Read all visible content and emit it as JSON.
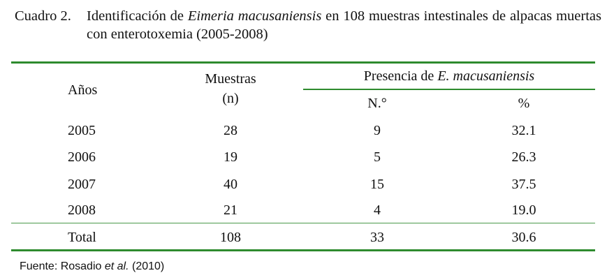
{
  "caption": {
    "label": "Cuadro 2.",
    "text_before": "Identificación de ",
    "species_italic": "Eimeria macusaniensis",
    "text_after": " en 108 muestras intestinales de alpacas muertas con enterotoxemia (2005-2008)"
  },
  "table": {
    "headers": {
      "years": "Años",
      "samples_line1": "Muestras",
      "samples_line2": "(n)",
      "presence_prefix": "Presencia de ",
      "presence_species_italic": "E. macusaniensis",
      "count": "N.°",
      "percent": "%"
    },
    "rows": [
      {
        "year": "2005",
        "n": "28",
        "count": "9",
        "percent": "32.1"
      },
      {
        "year": "2006",
        "n": "19",
        "count": "5",
        "percent": "26.3"
      },
      {
        "year": "2007",
        "n": "40",
        "count": "15",
        "percent": "37.5"
      },
      {
        "year": "2008",
        "n": "21",
        "count": "4",
        "percent": "19.0"
      }
    ],
    "total": {
      "label": "Total",
      "n": "108",
      "count": "33",
      "percent": "30.6"
    }
  },
  "source": {
    "prefix": "Fuente: Rosadio ",
    "etal_italic": "et al.",
    "suffix": " (2010)"
  },
  "colors": {
    "rule": "#2e8b2e",
    "text": "#111111"
  }
}
